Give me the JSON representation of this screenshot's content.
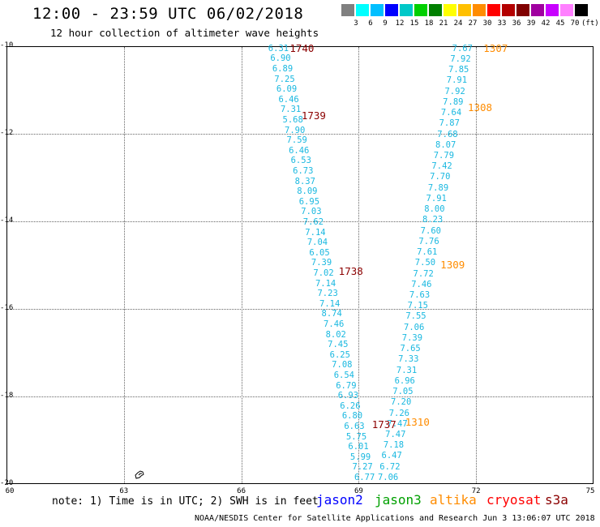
{
  "title": "12:00 - 23:59 UTC 06/02/2018",
  "subtitle": "12 hour collection of altimeter wave heights",
  "scale": {
    "colors": [
      "#808080",
      "#00ffff",
      "#00bfff",
      "#0000ff",
      "#00c8c8",
      "#00d000",
      "#008000",
      "#ffff00",
      "#ffc000",
      "#ff8c00",
      "#ff0000",
      "#b40000",
      "#800000",
      "#a000a0",
      "#c800ff",
      "#ff80ff",
      "#000000"
    ],
    "labels": [
      "3",
      "6",
      "9",
      "12",
      "15",
      "18",
      "21",
      "24",
      "27",
      "30",
      "33",
      "36",
      "39",
      "42",
      "45",
      "70"
    ],
    "unit": "(ft)"
  },
  "axes": {
    "x_ticks": [
      "60",
      "63",
      "66",
      "69",
      "72",
      "75"
    ],
    "y_ticks": [
      "-10",
      "-12",
      "-14",
      "-16",
      "-18",
      "-20"
    ],
    "x_range": [
      60,
      75
    ],
    "y_range": [
      -20,
      -10
    ]
  },
  "tracks": [
    {
      "color": "#1ab8e0",
      "lat0": -10.05,
      "lon0": 66.95,
      "lat1": -19.85,
      "lon1": 69.15,
      "values": [
        "6.31",
        "6.90",
        "6.89",
        "7.25",
        "6.09",
        "6.46",
        "7.31",
        "5.68",
        "7.90",
        "7.59",
        "6.46",
        "6.53",
        "6.73",
        "8.37",
        "8.09",
        "6.95",
        "7.03",
        "7.62",
        "7.14",
        "7.04",
        "6.05",
        "7.39",
        "7.02",
        "7.14",
        "7.23",
        "7.14",
        "8.74",
        "7.46",
        "8.02",
        "7.45",
        "6.25",
        "7.08",
        "6.54",
        "6.79",
        "6.93",
        "6.26",
        "6.80",
        "6.63",
        "5.75",
        "6.01",
        "5.99",
        "7.27",
        "6.77"
      ]
    },
    {
      "color": "#1ab8e0",
      "lat0": -10.05,
      "lon0": 71.65,
      "lat1": -19.85,
      "lon1": 69.75,
      "values": [
        "7.67",
        "7.92",
        "7.85",
        "7.91",
        "7.92",
        "7.89",
        "7.64",
        "7.87",
        "7.68",
        "8.07",
        "7.79",
        "7.42",
        "7.70",
        "7.89",
        "7.91",
        "8.00",
        "8.23",
        "7.60",
        "7.76",
        "7.61",
        "7.50",
        "7.72",
        "7.46",
        "7.63",
        "7.15",
        "7.55",
        "7.06",
        "7.39",
        "7.65",
        "7.33",
        "7.31",
        "6.96",
        "7.05",
        "7.20",
        "7.26",
        "7.47",
        "7.47",
        "7.18",
        "6.47",
        "6.72",
        "7.06"
      ]
    }
  ],
  "times": [
    {
      "text": "1740",
      "color": "#8b0000",
      "lat": -10.05,
      "lon": 67.55
    },
    {
      "text": "1739",
      "color": "#8b0000",
      "lat": -11.6,
      "lon": 67.85
    },
    {
      "text": "1738",
      "color": "#8b0000",
      "lat": -15.15,
      "lon": 68.8
    },
    {
      "text": "1737",
      "color": "#8b0000",
      "lat": -18.65,
      "lon": 69.65
    },
    {
      "text": "1307",
      "color": "#ff8c00",
      "lat": -10.05,
      "lon": 72.5
    },
    {
      "text": "1308",
      "color": "#ff8c00",
      "lat": -11.4,
      "lon": 72.1
    },
    {
      "text": "1309",
      "color": "#ff8c00",
      "lat": -15.0,
      "lon": 71.4
    },
    {
      "text": "1310",
      "color": "#ff8c00",
      "lat": -18.6,
      "lon": 70.5
    }
  ],
  "note": "note: 1) Time is in UTC; 2) SWH is in feet",
  "legend": [
    {
      "text": "jason2",
      "color": "#0000ff",
      "left": 390
    },
    {
      "text": "jason3",
      "color": "#00a000",
      "left": 462
    },
    {
      "text": "altika",
      "color": "#ff8c00",
      "left": 530
    },
    {
      "text": "cryosat",
      "color": "#ff0000",
      "left": 600
    },
    {
      "text": "s3a",
      "color": "#8b0000",
      "left": 672
    }
  ],
  "credit": "NOAA/NESDIS Center for Satellite Applications and Research   Jun  3 13:06:07 UTC 2018"
}
